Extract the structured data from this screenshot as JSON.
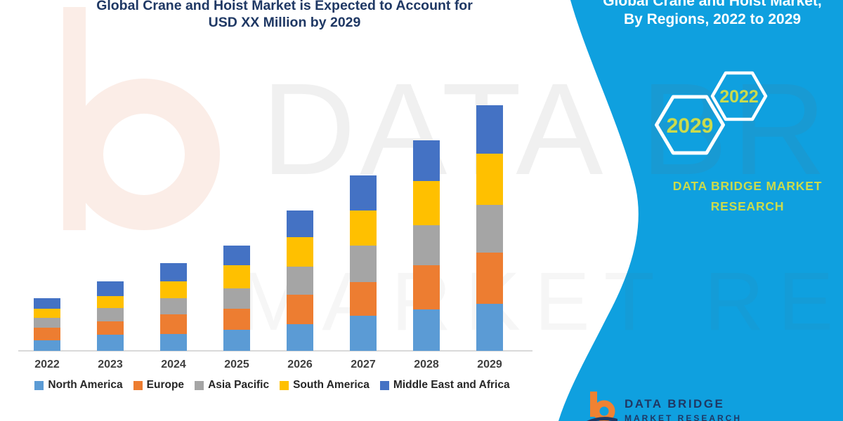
{
  "header": {
    "title_line1": "Global Crane and Hoist Market is Expected to Account for",
    "title_line2": "USD XX Million by 2029"
  },
  "banner": {
    "title_line1": "Global Crane and Hoist Market,",
    "title_line2": "By Regions, 2022 to 2029",
    "hexagon_back_year": "2022",
    "hexagon_front_year": "2029",
    "brand_line1": "DATA BRIDGE MARKET",
    "brand_line2": "RESEARCH",
    "background_color": "#0FA0DF",
    "accent_text_color": "#CBDB4C"
  },
  "watermark": {
    "row1": "DATA BRIDGE",
    "row2": "MARKET RESEARCH"
  },
  "footer_logo": {
    "line1": "DATA BRIDGE",
    "line2": "MARKET RESEARCH",
    "orange": "#F08232",
    "navy": "#1F3864"
  },
  "chart_data": {
    "type": "bar",
    "stacked": true,
    "title": "Global Crane and Hoist Market is Expected to Account for USD XX Million by 2029",
    "xlabel": "",
    "ylabel": "",
    "units": "USD Million (y-axis unlabeled in source; values are relative estimates)",
    "y_axis_visible": false,
    "grid": false,
    "legend_position": "bottom",
    "ylim": [
      0,
      360
    ],
    "categories": [
      "2022",
      "2023",
      "2024",
      "2025",
      "2026",
      "2027",
      "2028",
      "2029"
    ],
    "series": [
      {
        "name": "North America",
        "color": "#5B9BD5",
        "values": [
          15,
          23,
          24,
          30,
          38,
          50,
          59,
          67
        ]
      },
      {
        "name": "Europe",
        "color": "#ED7D31",
        "values": [
          18,
          19,
          28,
          30,
          42,
          48,
          63,
          73
        ]
      },
      {
        "name": "Asia Pacific",
        "color": "#A5A5A5",
        "values": [
          14,
          19,
          23,
          29,
          40,
          52,
          57,
          68
        ]
      },
      {
        "name": "South America",
        "color": "#FFC000",
        "values": [
          13,
          17,
          24,
          33,
          42,
          50,
          63,
          73
        ]
      },
      {
        "name": "Middle East and Africa",
        "color": "#4472C4",
        "values": [
          15,
          21,
          26,
          28,
          38,
          50,
          58,
          69
        ]
      }
    ],
    "totals": [
      75,
      99,
      125,
      150,
      200,
      250,
      300,
      350
    ]
  }
}
